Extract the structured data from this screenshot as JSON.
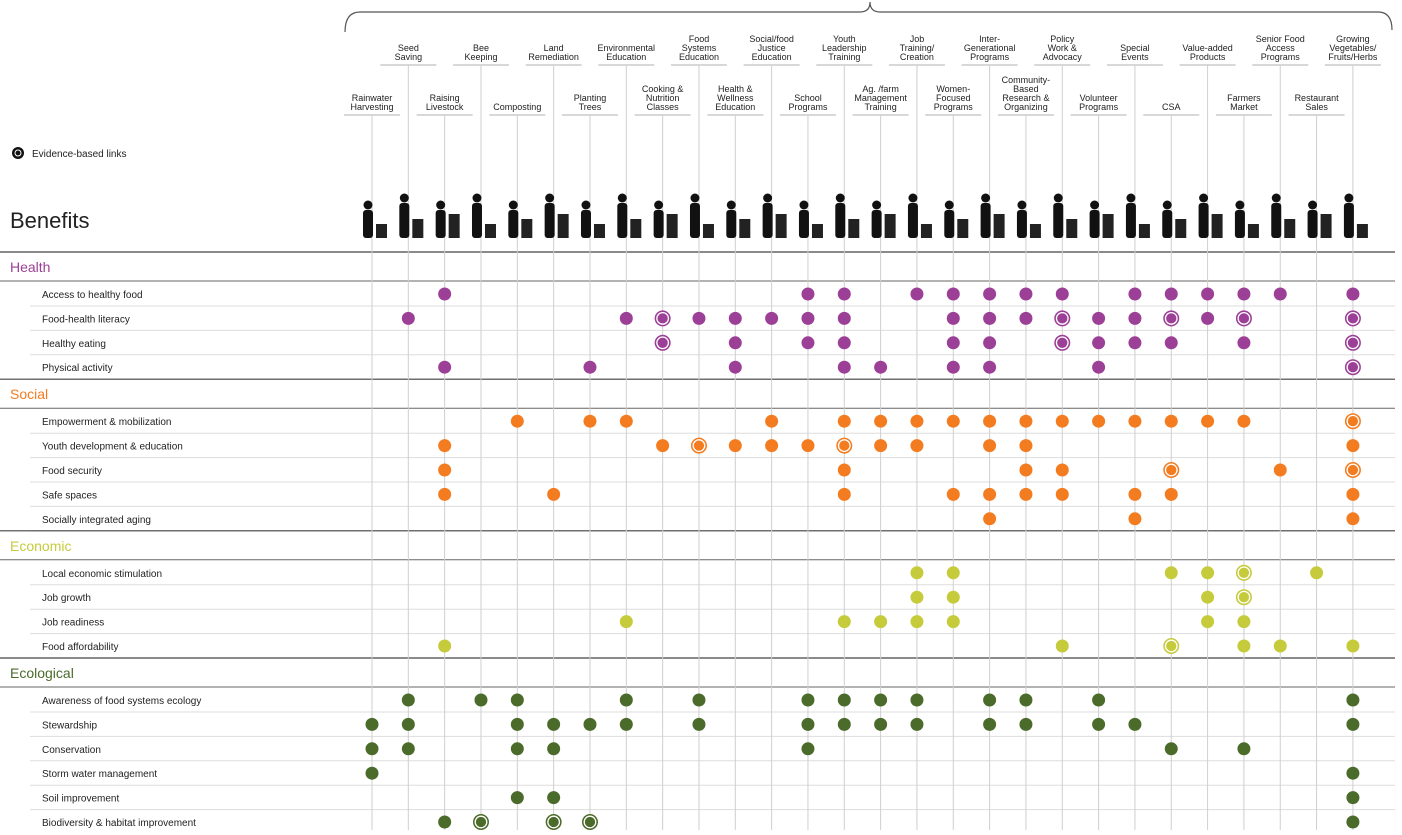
{
  "chart_data": {
    "type": "dot-matrix",
    "title": "Benefits",
    "legend": "Evidence-based links",
    "columns": [
      [
        "Rainwater",
        "Harvesting"
      ],
      [
        "Seed",
        "Saving"
      ],
      [
        "Raising",
        "Livestock"
      ],
      [
        "Bee",
        "Keeping"
      ],
      [
        "Composting"
      ],
      [
        "Land",
        "Remediation"
      ],
      [
        "Planting",
        "Trees"
      ],
      [
        "Environmental",
        "Education"
      ],
      [
        "Cooking &",
        "Nutrition",
        "Classes"
      ],
      [
        "Food",
        "Systems",
        "Education"
      ],
      [
        "Health &",
        "Wellness",
        "Education"
      ],
      [
        "Social/food",
        "Justice",
        "Education"
      ],
      [
        "School",
        "Programs"
      ],
      [
        "Youth",
        "Leadership",
        "Training"
      ],
      [
        "Ag. /farm",
        "Management",
        "Training"
      ],
      [
        "Job",
        "Training/",
        "Creation"
      ],
      [
        "Women-",
        "Focused",
        "Programs"
      ],
      [
        "Inter-",
        "Generational",
        "Programs"
      ],
      [
        "Community-",
        "Based",
        "Research &",
        "Organizing"
      ],
      [
        "Policy",
        "Work &",
        "Advocacy"
      ],
      [
        "Volunteer",
        "Programs"
      ],
      [
        "Special",
        "Events"
      ],
      [
        "CSA"
      ],
      [
        "Value-added",
        "Products"
      ],
      [
        "Farmers",
        "Market"
      ],
      [
        "Senior Food",
        "Access",
        "Programs"
      ],
      [
        "Restaurant",
        "Sales"
      ],
      [
        "Growing",
        "Vegetables/",
        "Fruits/Herbs"
      ]
    ],
    "groups": [
      {
        "name": "Health",
        "color": "#9c3f97",
        "rows": [
          {
            "label": "Access to healthy food",
            "links": [
              0,
              0,
              1,
              0,
              0,
              0,
              0,
              0,
              0,
              0,
              0,
              0,
              1,
              1,
              0,
              1,
              1,
              1,
              1,
              1,
              0,
              1,
              1,
              1,
              1,
              1,
              0,
              1
            ]
          },
          {
            "label": "Food-health literacy",
            "links": [
              0,
              1,
              0,
              0,
              0,
              0,
              0,
              1,
              2,
              1,
              1,
              1,
              1,
              1,
              0,
              0,
              1,
              1,
              1,
              2,
              1,
              1,
              2,
              1,
              2,
              0,
              0,
              2
            ]
          },
          {
            "label": "Healthy eating",
            "links": [
              0,
              0,
              0,
              0,
              0,
              0,
              0,
              0,
              2,
              0,
              1,
              0,
              1,
              1,
              0,
              0,
              1,
              1,
              0,
              2,
              1,
              1,
              1,
              0,
              1,
              0,
              0,
              2
            ]
          },
          {
            "label": "Physical activity",
            "links": [
              0,
              0,
              1,
              0,
              0,
              0,
              1,
              0,
              0,
              0,
              1,
              0,
              0,
              1,
              1,
              0,
              1,
              1,
              0,
              0,
              1,
              0,
              0,
              0,
              0,
              0,
              0,
              2
            ]
          }
        ]
      },
      {
        "name": "Social",
        "color": "#f47c20",
        "rows": [
          {
            "label": "Empowerment & mobilization",
            "links": [
              0,
              0,
              0,
              0,
              1,
              0,
              1,
              1,
              0,
              0,
              0,
              1,
              0,
              1,
              1,
              1,
              1,
              1,
              1,
              1,
              1,
              1,
              1,
              1,
              1,
              0,
              0,
              2
            ]
          },
          {
            "label": "Youth development & education",
            "links": [
              0,
              0,
              1,
              0,
              0,
              0,
              0,
              0,
              1,
              2,
              1,
              1,
              1,
              2,
              1,
              1,
              0,
              1,
              1,
              0,
              0,
              0,
              0,
              0,
              0,
              0,
              0,
              1
            ]
          },
          {
            "label": "Food security",
            "links": [
              0,
              0,
              1,
              0,
              0,
              0,
              0,
              0,
              0,
              0,
              0,
              0,
              0,
              1,
              0,
              0,
              0,
              0,
              1,
              1,
              0,
              0,
              2,
              0,
              0,
              1,
              0,
              2
            ]
          },
          {
            "label": "Safe spaces",
            "links": [
              0,
              0,
              1,
              0,
              0,
              1,
              0,
              0,
              0,
              0,
              0,
              0,
              0,
              1,
              0,
              0,
              1,
              1,
              1,
              1,
              0,
              1,
              1,
              0,
              0,
              0,
              0,
              1
            ]
          },
          {
            "label": "Socially integrated aging",
            "links": [
              0,
              0,
              0,
              0,
              0,
              0,
              0,
              0,
              0,
              0,
              0,
              0,
              0,
              0,
              0,
              0,
              0,
              1,
              0,
              0,
              0,
              1,
              0,
              0,
              0,
              0,
              0,
              1
            ]
          }
        ]
      },
      {
        "name": "Economic",
        "color": "#c6cb3b",
        "rows": [
          {
            "label": "Local economic stimulation",
            "links": [
              0,
              0,
              0,
              0,
              0,
              0,
              0,
              0,
              0,
              0,
              0,
              0,
              0,
              0,
              0,
              1,
              1,
              0,
              0,
              0,
              0,
              0,
              1,
              1,
              2,
              0,
              1,
              0
            ]
          },
          {
            "label": "Job growth",
            "links": [
              0,
              0,
              0,
              0,
              0,
              0,
              0,
              0,
              0,
              0,
              0,
              0,
              0,
              0,
              0,
              1,
              1,
              0,
              0,
              0,
              0,
              0,
              0,
              1,
              2,
              0,
              0,
              0
            ]
          },
          {
            "label": "Job readiness",
            "links": [
              0,
              0,
              0,
              0,
              0,
              0,
              0,
              1,
              0,
              0,
              0,
              0,
              0,
              1,
              1,
              1,
              1,
              0,
              0,
              0,
              0,
              0,
              0,
              1,
              1,
              0,
              0,
              0
            ]
          },
          {
            "label": "Food affordability",
            "links": [
              0,
              0,
              1,
              0,
              0,
              0,
              0,
              0,
              0,
              0,
              0,
              0,
              0,
              0,
              0,
              0,
              0,
              0,
              0,
              1,
              0,
              0,
              2,
              0,
              1,
              1,
              0,
              1
            ]
          }
        ]
      },
      {
        "name": "Ecological",
        "color": "#4b6b2a",
        "rows": [
          {
            "label": "Awareness of food systems ecology",
            "links": [
              0,
              1,
              0,
              1,
              1,
              0,
              0,
              1,
              0,
              1,
              0,
              0,
              1,
              1,
              1,
              1,
              0,
              1,
              1,
              0,
              1,
              0,
              0,
              0,
              0,
              0,
              0,
              1
            ]
          },
          {
            "label": "Stewardship",
            "links": [
              1,
              1,
              0,
              0,
              1,
              1,
              1,
              1,
              0,
              1,
              0,
              0,
              1,
              1,
              1,
              1,
              0,
              1,
              1,
              0,
              1,
              1,
              0,
              0,
              0,
              0,
              0,
              1
            ]
          },
          {
            "label": "Conservation",
            "links": [
              1,
              1,
              0,
              0,
              1,
              1,
              0,
              0,
              0,
              0,
              0,
              0,
              1,
              0,
              0,
              0,
              0,
              0,
              0,
              0,
              0,
              0,
              1,
              0,
              1,
              0,
              0,
              0
            ]
          },
          {
            "label": "Storm water management",
            "links": [
              1,
              0,
              0,
              0,
              0,
              0,
              0,
              0,
              0,
              0,
              0,
              0,
              0,
              0,
              0,
              0,
              0,
              0,
              0,
              0,
              0,
              0,
              0,
              0,
              0,
              0,
              0,
              1
            ]
          },
          {
            "label": "Soil improvement",
            "links": [
              0,
              0,
              0,
              0,
              1,
              1,
              0,
              0,
              0,
              0,
              0,
              0,
              0,
              0,
              0,
              0,
              0,
              0,
              0,
              0,
              0,
              0,
              0,
              0,
              0,
              0,
              0,
              1
            ]
          },
          {
            "label": "Biodiversity & habitat improvement",
            "links": [
              0,
              0,
              1,
              2,
              0,
              2,
              2,
              0,
              0,
              0,
              0,
              0,
              0,
              0,
              0,
              0,
              0,
              0,
              0,
              0,
              0,
              0,
              0,
              0,
              0,
              0,
              0,
              1
            ]
          }
        ]
      }
    ]
  }
}
